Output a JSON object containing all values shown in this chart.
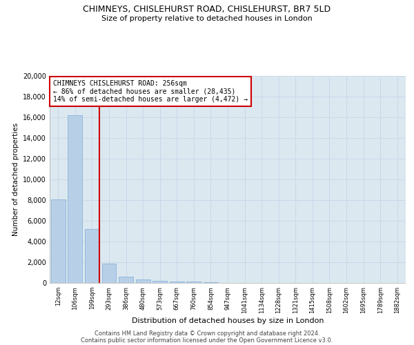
{
  "title_line1": "CHIMNEYS, CHISLEHURST ROAD, CHISLEHURST, BR7 5LD",
  "title_line2": "Size of property relative to detached houses in London",
  "xlabel": "Distribution of detached houses by size in London",
  "ylabel": "Number of detached properties",
  "categories": [
    "12sqm",
    "106sqm",
    "199sqm",
    "293sqm",
    "386sqm",
    "480sqm",
    "573sqm",
    "667sqm",
    "760sqm",
    "854sqm",
    "947sqm",
    "1041sqm",
    "1134sqm",
    "1228sqm",
    "1321sqm",
    "1415sqm",
    "1508sqm",
    "1602sqm",
    "1695sqm",
    "1789sqm",
    "1882sqm"
  ],
  "values": [
    8050,
    16200,
    5200,
    1850,
    600,
    350,
    200,
    150,
    110,
    80,
    0,
    0,
    0,
    0,
    0,
    0,
    0,
    0,
    0,
    0,
    0
  ],
  "bar_color": "#b8cfe8",
  "bar_edge_color": "#7aaed6",
  "vline_x_idx": 2,
  "vline_color": "#cc0000",
  "annotation_text": "CHIMNEYS CHISLEHURST ROAD: 256sqm\n← 86% of detached houses are smaller (28,435)\n14% of semi-detached houses are larger (4,472) →",
  "annotation_box_color": "#cc0000",
  "annotation_bg": "#ffffff",
  "ylim": [
    0,
    20000
  ],
  "yticks": [
    0,
    2000,
    4000,
    6000,
    8000,
    10000,
    12000,
    14000,
    16000,
    18000,
    20000
  ],
  "footer_line1": "Contains HM Land Registry data © Crown copyright and database right 2024.",
  "footer_line2": "Contains public sector information licensed under the Open Government Licence v3.0.",
  "bg_color": "#ffffff",
  "grid_color": "#c8d4e8",
  "axes_bg": "#dce8f0"
}
